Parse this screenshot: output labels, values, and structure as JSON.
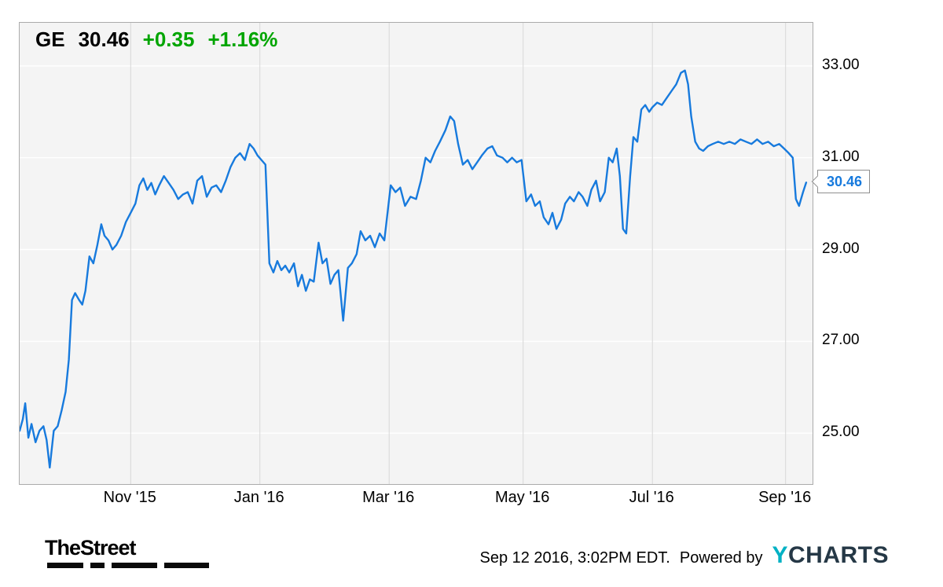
{
  "quote": {
    "symbol": "GE",
    "price": "30.46",
    "change": "+0.35",
    "change_pct": "+1.16%"
  },
  "callout": {
    "value": "30.46"
  },
  "footer": {
    "brand": "TheStreet",
    "timestamp": "Sep 12 2016, 3:02PM EDT.",
    "powered_by": "Powered by",
    "ycharts_y": "Y",
    "ycharts_rest": "CHARTS"
  },
  "colors": {
    "line": "#177add",
    "up_green": "#00a500",
    "plot_bg": "#f4f4f4",
    "plot_border": "#ababab",
    "grid_horizontal": "#ffffff",
    "grid_vertical": "#d7d7d7",
    "ycharts_y": "#00b1c4",
    "ycharts_rest": "#253846"
  },
  "chart_data": {
    "type": "line",
    "title": "GE stock price, 1 year",
    "ylabel": "",
    "xlabel": "",
    "ylim": [
      23.89,
      33.94
    ],
    "y_ticks": [
      33,
      31,
      29,
      27,
      25
    ],
    "y_tick_labels": [
      "33.00",
      "31.00",
      "29.00",
      "27.00",
      "25.00"
    ],
    "x_ticks": [
      {
        "label": "Nov '15",
        "f": 0.14
      },
      {
        "label": "Jan '16",
        "f": 0.303
      },
      {
        "label": "Mar '16",
        "f": 0.466
      },
      {
        "label": "May '16",
        "f": 0.635
      },
      {
        "label": "Jul '16",
        "f": 0.798
      },
      {
        "label": "Sep '16",
        "f": 0.966
      }
    ],
    "grid": {
      "horizontal": true,
      "vertical": true
    },
    "legend": "none",
    "last_value": 30.46,
    "series": [
      {
        "name": "GE",
        "points": [
          [
            0.0,
            25.05
          ],
          [
            0.004,
            25.3
          ],
          [
            0.007,
            25.65
          ],
          [
            0.011,
            24.9
          ],
          [
            0.015,
            25.2
          ],
          [
            0.02,
            24.8
          ],
          [
            0.025,
            25.05
          ],
          [
            0.03,
            25.15
          ],
          [
            0.034,
            24.85
          ],
          [
            0.038,
            24.25
          ],
          [
            0.043,
            25.05
          ],
          [
            0.048,
            25.15
          ],
          [
            0.053,
            25.5
          ],
          [
            0.058,
            25.9
          ],
          [
            0.062,
            26.6
          ],
          [
            0.066,
            27.9
          ],
          [
            0.07,
            28.05
          ],
          [
            0.075,
            27.9
          ],
          [
            0.079,
            27.8
          ],
          [
            0.083,
            28.1
          ],
          [
            0.088,
            28.85
          ],
          [
            0.093,
            28.7
          ],
          [
            0.098,
            29.1
          ],
          [
            0.103,
            29.55
          ],
          [
            0.107,
            29.3
          ],
          [
            0.112,
            29.2
          ],
          [
            0.117,
            29.0
          ],
          [
            0.122,
            29.1
          ],
          [
            0.128,
            29.3
          ],
          [
            0.134,
            29.6
          ],
          [
            0.14,
            29.8
          ],
          [
            0.146,
            30.0
          ],
          [
            0.151,
            30.4
          ],
          [
            0.156,
            30.55
          ],
          [
            0.161,
            30.3
          ],
          [
            0.166,
            30.45
          ],
          [
            0.171,
            30.2
          ],
          [
            0.176,
            30.4
          ],
          [
            0.182,
            30.6
          ],
          [
            0.188,
            30.45
          ],
          [
            0.194,
            30.3
          ],
          [
            0.2,
            30.1
          ],
          [
            0.206,
            30.2
          ],
          [
            0.212,
            30.25
          ],
          [
            0.218,
            30.0
          ],
          [
            0.224,
            30.5
          ],
          [
            0.23,
            30.6
          ],
          [
            0.236,
            30.15
          ],
          [
            0.242,
            30.35
          ],
          [
            0.248,
            30.4
          ],
          [
            0.254,
            30.25
          ],
          [
            0.26,
            30.5
          ],
          [
            0.266,
            30.8
          ],
          [
            0.272,
            31.0
          ],
          [
            0.278,
            31.1
          ],
          [
            0.284,
            30.95
          ],
          [
            0.29,
            31.3
          ],
          [
            0.295,
            31.2
          ],
          [
            0.3,
            31.05
          ],
          [
            0.305,
            30.95
          ],
          [
            0.31,
            30.85
          ],
          [
            0.315,
            28.7
          ],
          [
            0.32,
            28.5
          ],
          [
            0.325,
            28.75
          ],
          [
            0.33,
            28.55
          ],
          [
            0.335,
            28.65
          ],
          [
            0.34,
            28.5
          ],
          [
            0.346,
            28.7
          ],
          [
            0.351,
            28.2
          ],
          [
            0.356,
            28.45
          ],
          [
            0.361,
            28.1
          ],
          [
            0.366,
            28.35
          ],
          [
            0.371,
            28.3
          ],
          [
            0.377,
            29.15
          ],
          [
            0.382,
            28.7
          ],
          [
            0.387,
            28.8
          ],
          [
            0.392,
            28.25
          ],
          [
            0.397,
            28.45
          ],
          [
            0.402,
            28.55
          ],
          [
            0.408,
            27.45
          ],
          [
            0.414,
            28.6
          ],
          [
            0.419,
            28.7
          ],
          [
            0.425,
            28.9
          ],
          [
            0.43,
            29.4
          ],
          [
            0.436,
            29.2
          ],
          [
            0.442,
            29.3
          ],
          [
            0.448,
            29.05
          ],
          [
            0.454,
            29.35
          ],
          [
            0.46,
            29.2
          ],
          [
            0.468,
            30.4
          ],
          [
            0.474,
            30.25
          ],
          [
            0.48,
            30.35
          ],
          [
            0.486,
            29.95
          ],
          [
            0.493,
            30.15
          ],
          [
            0.5,
            30.1
          ],
          [
            0.506,
            30.5
          ],
          [
            0.512,
            31.0
          ],
          [
            0.518,
            30.9
          ],
          [
            0.524,
            31.15
          ],
          [
            0.53,
            31.35
          ],
          [
            0.537,
            31.6
          ],
          [
            0.543,
            31.9
          ],
          [
            0.548,
            31.8
          ],
          [
            0.553,
            31.3
          ],
          [
            0.559,
            30.85
          ],
          [
            0.565,
            30.95
          ],
          [
            0.571,
            30.75
          ],
          [
            0.577,
            30.9
          ],
          [
            0.583,
            31.05
          ],
          [
            0.59,
            31.2
          ],
          [
            0.596,
            31.25
          ],
          [
            0.602,
            31.05
          ],
          [
            0.609,
            31.0
          ],
          [
            0.615,
            30.9
          ],
          [
            0.621,
            31.0
          ],
          [
            0.627,
            30.9
          ],
          [
            0.633,
            30.95
          ],
          [
            0.639,
            30.05
          ],
          [
            0.645,
            30.2
          ],
          [
            0.65,
            29.95
          ],
          [
            0.656,
            30.05
          ],
          [
            0.661,
            29.7
          ],
          [
            0.667,
            29.55
          ],
          [
            0.672,
            29.8
          ],
          [
            0.677,
            29.45
          ],
          [
            0.683,
            29.65
          ],
          [
            0.688,
            30.0
          ],
          [
            0.694,
            30.15
          ],
          [
            0.699,
            30.05
          ],
          [
            0.705,
            30.25
          ],
          [
            0.71,
            30.15
          ],
          [
            0.716,
            29.95
          ],
          [
            0.721,
            30.3
          ],
          [
            0.727,
            30.5
          ],
          [
            0.732,
            30.05
          ],
          [
            0.738,
            30.25
          ],
          [
            0.743,
            31.0
          ],
          [
            0.748,
            30.9
          ],
          [
            0.753,
            31.2
          ],
          [
            0.757,
            30.6
          ],
          [
            0.761,
            29.45
          ],
          [
            0.765,
            29.35
          ],
          [
            0.77,
            30.6
          ],
          [
            0.774,
            31.45
          ],
          [
            0.779,
            31.35
          ],
          [
            0.784,
            32.05
          ],
          [
            0.789,
            32.15
          ],
          [
            0.794,
            32.0
          ],
          [
            0.798,
            32.1
          ],
          [
            0.804,
            32.2
          ],
          [
            0.81,
            32.15
          ],
          [
            0.816,
            32.3
          ],
          [
            0.822,
            32.45
          ],
          [
            0.828,
            32.6
          ],
          [
            0.834,
            32.85
          ],
          [
            0.839,
            32.9
          ],
          [
            0.843,
            32.6
          ],
          [
            0.847,
            31.9
          ],
          [
            0.852,
            31.35
          ],
          [
            0.857,
            31.2
          ],
          [
            0.862,
            31.15
          ],
          [
            0.868,
            31.25
          ],
          [
            0.874,
            31.3
          ],
          [
            0.881,
            31.35
          ],
          [
            0.888,
            31.3
          ],
          [
            0.895,
            31.35
          ],
          [
            0.902,
            31.3
          ],
          [
            0.909,
            31.4
          ],
          [
            0.916,
            31.35
          ],
          [
            0.923,
            31.3
          ],
          [
            0.93,
            31.4
          ],
          [
            0.937,
            31.3
          ],
          [
            0.944,
            31.35
          ],
          [
            0.951,
            31.25
          ],
          [
            0.958,
            31.3
          ],
          [
            0.964,
            31.2
          ],
          [
            0.97,
            31.1
          ],
          [
            0.975,
            31.0
          ],
          [
            0.979,
            30.1
          ],
          [
            0.983,
            29.95
          ],
          [
            0.988,
            30.25
          ],
          [
            0.992,
            30.46
          ]
        ]
      }
    ]
  }
}
